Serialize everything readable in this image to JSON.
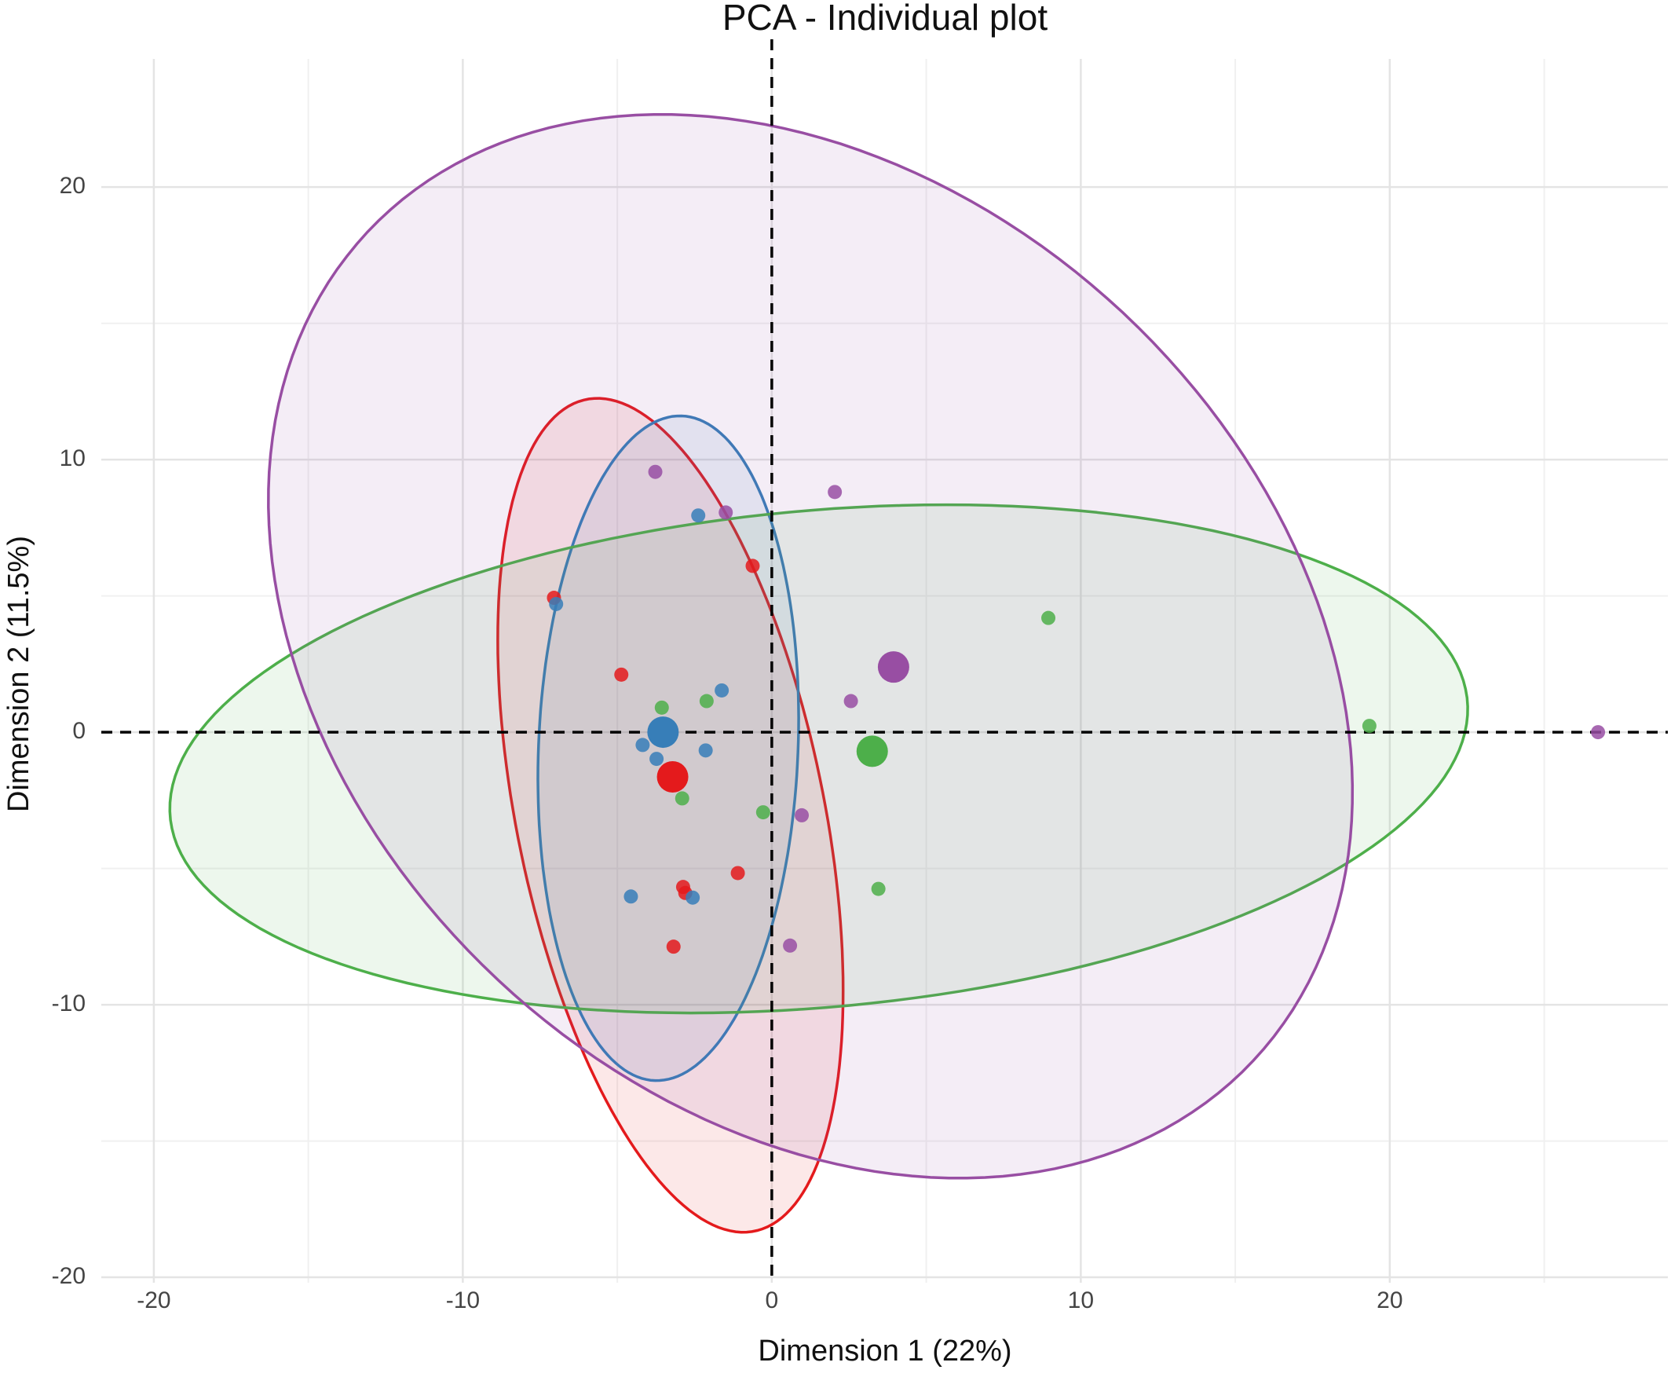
{
  "chart_data": {
    "type": "scatter",
    "title": "PCA - Individual plot",
    "xlabel": "Dimension 1 (22%)",
    "ylabel": "Dimension 2 (11.5%)",
    "xlim": [
      -21.7,
      29
    ],
    "ylim": [
      -20.2,
      24.7
    ],
    "xticks": [
      -20,
      -10,
      0,
      10,
      20
    ],
    "yticks": [
      -20,
      -10,
      0,
      10,
      20
    ],
    "xminor": [
      -15,
      -5,
      5,
      15,
      25
    ],
    "yminor": [
      -15,
      -5,
      5,
      15
    ],
    "grid": true,
    "hline": 0,
    "vline": 0,
    "series": [
      {
        "color": "#e41a1c",
        "x": [
          -7.05,
          -4.87,
          -0.62,
          -2.87,
          -2.8,
          -1.1,
          -3.18
        ],
        "y": [
          4.93,
          2.11,
          6.1,
          -5.68,
          -5.9,
          -5.17,
          -7.87
        ],
        "centroid": [
          -3.21,
          -1.64
        ],
        "ellipse": {
          "cx": -3.28,
          "cy": -3.05,
          "a": 15.5,
          "b": 5.0,
          "angle": -80.2
        }
      },
      {
        "color": "#377eb8",
        "x": [
          -6.98,
          -2.38,
          -1.62,
          -4.18,
          -3.73,
          -2.14,
          -4.56,
          -2.56
        ],
        "y": [
          4.7,
          7.95,
          1.53,
          -0.47,
          -0.98,
          -0.67,
          -6.03,
          -6.07
        ],
        "centroid": [
          -3.52,
          0
        ],
        "ellipse": {
          "cx": -3.35,
          "cy": -0.59,
          "a": 12.2,
          "b": 4.2,
          "angle": 88
        }
      },
      {
        "color": "#4daf4a",
        "x": [
          -3.56,
          -2.11,
          -2.9,
          -0.28,
          3.45,
          8.95,
          19.34
        ],
        "y": [
          0.9,
          1.14,
          -2.43,
          -2.94,
          -5.75,
          4.19,
          0.23
        ],
        "centroid": [
          3.25,
          -0.7
        ],
        "ellipse": {
          "cx": 1.52,
          "cy": -0.98,
          "a": 21.1,
          "b": 9.1,
          "angle": 6.1
        }
      },
      {
        "color": "#984ea3",
        "x": [
          -3.77,
          -1.49,
          2.04,
          2.56,
          0.97,
          0.59,
          26.74
        ],
        "y": [
          9.55,
          8.06,
          8.81,
          1.14,
          -3.05,
          -7.83,
          0
        ],
        "centroid": [
          3.94,
          2.39
        ],
        "ellipse": {
          "cx": 1.25,
          "cy": 3.15,
          "a": 21.1,
          "b": 15.6,
          "angle": -55.6
        }
      }
    ]
  }
}
